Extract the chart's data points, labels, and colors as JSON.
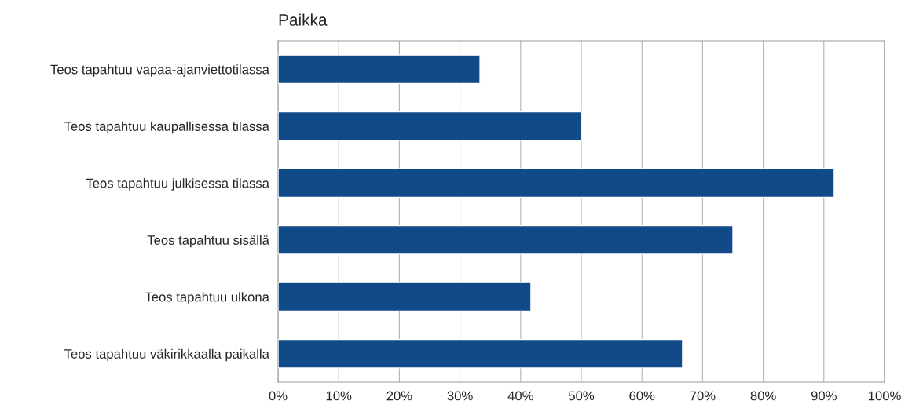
{
  "chart_data": {
    "type": "bar",
    "orientation": "horizontal",
    "title": "Paikka",
    "categories": [
      "Teos tapahtuu vapaa-ajanviettotilassa",
      "Teos tapahtuu kaupallisessa tilassa",
      "Teos tapahtuu julkisessa tilassa",
      "Teos tapahtuu sisällä",
      "Teos tapahtuu ulkona",
      "Teos tapahtuu väkirikkaalla paikalla"
    ],
    "values": [
      33.3,
      50,
      91.7,
      75,
      41.7,
      66.7
    ],
    "color": "#104a88",
    "xlim": [
      0,
      100
    ],
    "xticks": [
      {
        "value": 0,
        "label": "0%"
      },
      {
        "value": 10,
        "label": "10%"
      },
      {
        "value": 20,
        "label": "20%"
      },
      {
        "value": 30,
        "label": "30%"
      },
      {
        "value": 40,
        "label": "40%"
      },
      {
        "value": 50,
        "label": "50%"
      },
      {
        "value": 60,
        "label": "60%"
      },
      {
        "value": 70,
        "label": "70%"
      },
      {
        "value": 80,
        "label": "80%"
      },
      {
        "value": 90,
        "label": "90%"
      },
      {
        "value": 100,
        "label": "100%"
      }
    ],
    "grid": "x",
    "legend": false
  }
}
